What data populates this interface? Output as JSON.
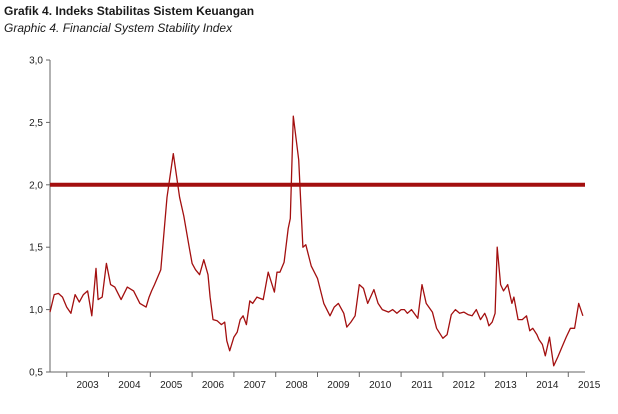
{
  "title": "Grafik 4. Indeks Stabilitas Sistem Keuangan",
  "subtitle": "Graphic 4. Financial System Stability Index",
  "colors": {
    "series": "#a30f0f",
    "threshold": "#a30f0f",
    "axis": "#666666"
  },
  "chart_data": {
    "type": "line",
    "title": "Grafik 4. Indeks Stabilitas Sistem Keuangan",
    "subtitle": "Graphic 4. Financial System Stability Index",
    "xlabel": "",
    "ylabel": "",
    "ylim": [
      0.5,
      3.0
    ],
    "xlim": [
      2002.6,
      2015.4
    ],
    "grid": false,
    "y_ticks": [
      "0,5",
      "1,0",
      "1,5",
      "2,0",
      "2,5",
      "3,0"
    ],
    "y_tick_values": [
      0.5,
      1.0,
      1.5,
      2.0,
      2.5,
      3.0
    ],
    "x_ticks": [
      "2003",
      "2004",
      "2005",
      "2006",
      "2007",
      "2008",
      "2009",
      "2010",
      "2011",
      "2012",
      "2013",
      "2014",
      "2015"
    ],
    "threshold": {
      "value": 2.0
    },
    "series": [
      {
        "x": [
          2002.6,
          2002.7,
          2002.8,
          2002.9,
          2003.0,
          2003.1,
          2003.2,
          2003.3,
          2003.4,
          2003.5,
          2003.6,
          2003.7,
          2003.75,
          2003.85,
          2003.95,
          2004.05,
          2004.15,
          2004.3,
          2004.45,
          2004.6,
          2004.75,
          2004.9,
          2004.97,
          2005.03,
          2005.1,
          2005.25,
          2005.4,
          2005.55,
          2005.7,
          2005.8,
          2005.93,
          2006.0,
          2006.08,
          2006.18,
          2006.28,
          2006.38,
          2006.43,
          2006.5,
          2006.6,
          2006.7,
          2006.78,
          2006.83,
          2006.9,
          2007.0,
          2007.08,
          2007.15,
          2007.22,
          2007.3,
          2007.38,
          2007.45,
          2007.55,
          2007.7,
          2007.82,
          2007.97,
          2008.03,
          2008.1,
          2008.2,
          2008.3,
          2008.35,
          2008.42,
          2008.55,
          2008.65,
          2008.72,
          2008.85,
          2009.0,
          2009.15,
          2009.3,
          2009.4,
          2009.5,
          2009.63,
          2009.7,
          2009.8,
          2009.9,
          2010.0,
          2010.1,
          2010.2,
          2010.35,
          2010.45,
          2010.55,
          2010.7,
          2010.8,
          2010.9,
          2011.0,
          2011.08,
          2011.15,
          2011.25,
          2011.4,
          2011.5,
          2011.6,
          2011.75,
          2011.85,
          2012.0,
          2012.1,
          2012.2,
          2012.3,
          2012.4,
          2012.5,
          2012.6,
          2012.7,
          2012.8,
          2012.9,
          2013.0,
          2013.05,
          2013.1,
          2013.18,
          2013.25,
          2013.3,
          2013.38,
          2013.45,
          2013.55,
          2013.65,
          2013.7,
          2013.8,
          2013.9,
          2014.0,
          2014.08,
          2014.15,
          2014.25,
          2014.3,
          2014.38,
          2014.45,
          2014.55,
          2014.65,
          2014.75,
          2014.85,
          2014.95,
          2015.05,
          2015.15,
          2015.25,
          2015.35
        ],
        "y": [
          0.98,
          1.12,
          1.13,
          1.1,
          1.02,
          0.97,
          1.12,
          1.06,
          1.12,
          1.15,
          0.95,
          1.33,
          1.08,
          1.1,
          1.37,
          1.2,
          1.18,
          1.08,
          1.18,
          1.15,
          1.05,
          1.02,
          1.1,
          1.15,
          1.2,
          1.32,
          1.9,
          2.25,
          1.9,
          1.75,
          1.5,
          1.37,
          1.32,
          1.28,
          1.4,
          1.28,
          1.1,
          0.92,
          0.91,
          0.88,
          0.9,
          0.75,
          0.67,
          0.78,
          0.82,
          0.92,
          0.95,
          0.88,
          1.07,
          1.05,
          1.1,
          1.08,
          1.3,
          1.14,
          1.3,
          1.3,
          1.38,
          1.65,
          1.73,
          2.55,
          2.2,
          1.5,
          1.52,
          1.35,
          1.25,
          1.05,
          0.95,
          1.02,
          1.05,
          0.97,
          0.86,
          0.9,
          0.95,
          1.2,
          1.17,
          1.05,
          1.16,
          1.05,
          1.0,
          0.98,
          1.0,
          0.97,
          1.0,
          1.0,
          0.97,
          1.0,
          0.93,
          1.2,
          1.05,
          0.98,
          0.85,
          0.77,
          0.8,
          0.96,
          1.0,
          0.97,
          0.98,
          0.96,
          0.95,
          1.0,
          0.92,
          0.97,
          0.93,
          0.87,
          0.9,
          0.97,
          1.5,
          1.2,
          1.15,
          1.2,
          1.05,
          1.1,
          0.92,
          0.92,
          0.95,
          0.83,
          0.85,
          0.8,
          0.76,
          0.72,
          0.63,
          0.78,
          0.55,
          0.62,
          0.7,
          0.78,
          0.85,
          0.85,
          1.05,
          0.95
        ]
      }
    ]
  }
}
